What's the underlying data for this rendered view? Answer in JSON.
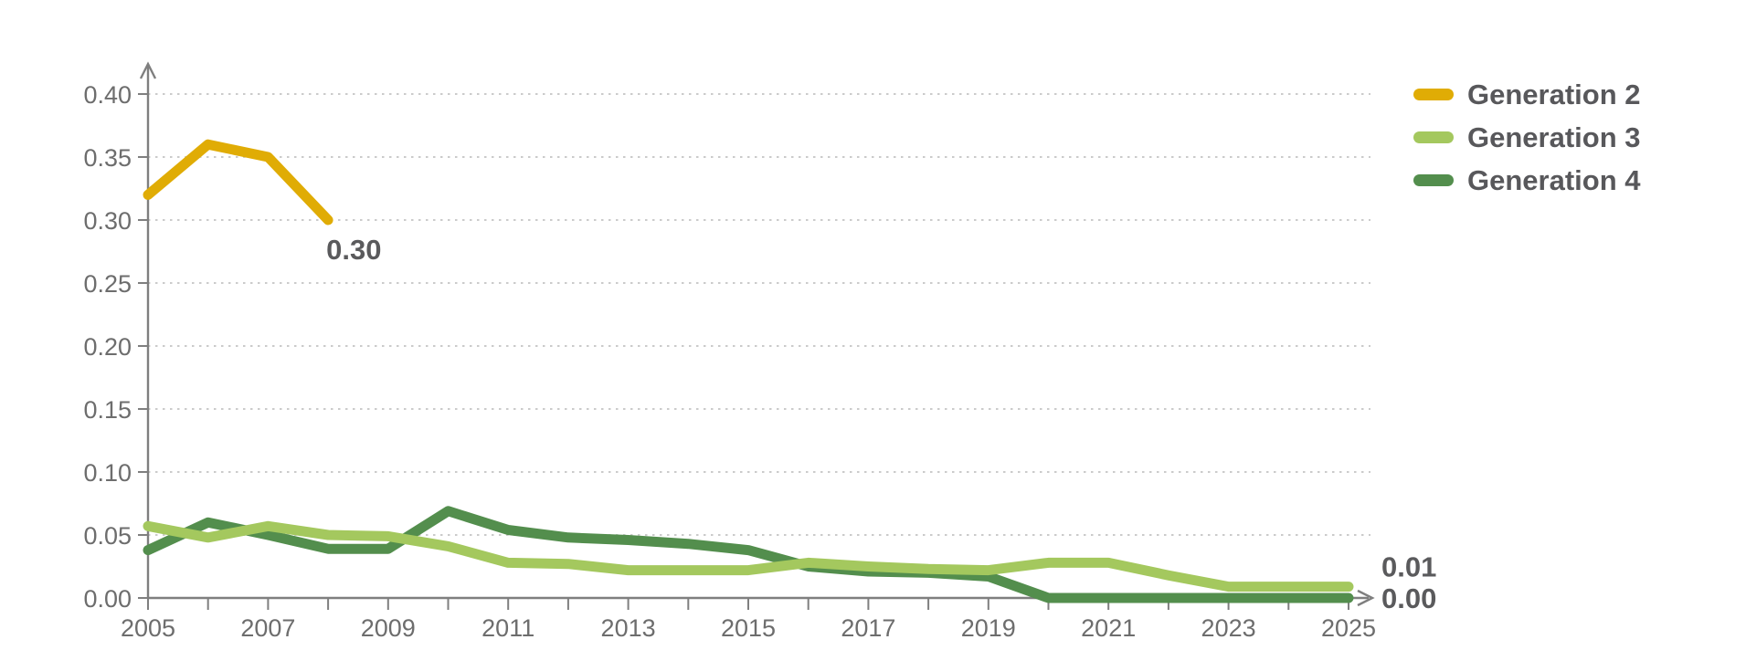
{
  "chart_data": {
    "type": "line",
    "title": "",
    "xlabel": "",
    "ylabel": "",
    "x": [
      2005,
      2006,
      2007,
      2008,
      2009,
      2010,
      2011,
      2012,
      2013,
      2014,
      2015,
      2016,
      2017,
      2018,
      2019,
      2020,
      2021,
      2022,
      2023,
      2024,
      2025
    ],
    "x_tick_labels": [
      "2005",
      "2007",
      "2009",
      "2011",
      "2013",
      "2015",
      "2017",
      "2019",
      "2021",
      "2023",
      "2025"
    ],
    "ylim": [
      0,
      0.4
    ],
    "y_ticks": [
      0.0,
      0.05,
      0.1,
      0.15,
      0.2,
      0.25,
      0.3,
      0.35,
      0.4
    ],
    "y_tick_labels": [
      "0.00",
      "0.05",
      "0.10",
      "0.15",
      "0.20",
      "0.25",
      "0.30",
      "0.35",
      "0.40"
    ],
    "grid": "horizontal-dotted",
    "legend_position": "top-right",
    "axes_have_arrowheads": true,
    "series": [
      {
        "name": "Generation 2",
        "color": "#e0ac05",
        "x_start": 2005,
        "values": [
          0.32,
          0.36,
          0.35,
          0.3
        ],
        "end_label": "0.30"
      },
      {
        "name": "Generation 3",
        "color": "#a4c85e",
        "x_start": 2005,
        "values": [
          0.057,
          0.048,
          0.057,
          0.05,
          0.049,
          0.041,
          0.028,
          0.027,
          0.022,
          0.022,
          0.022,
          0.028,
          0.025,
          0.023,
          0.022,
          0.028,
          0.028,
          0.018,
          0.009,
          0.009,
          0.009
        ],
        "end_label": "0.01"
      },
      {
        "name": "Generation 4",
        "color": "#538e4d",
        "x_start": 2005,
        "values": [
          0.038,
          0.06,
          0.05,
          0.039,
          0.039,
          0.069,
          0.054,
          0.048,
          0.046,
          0.043,
          0.038,
          0.025,
          0.021,
          0.02,
          0.017,
          0.0,
          0.0,
          0.0,
          0.0,
          0.0,
          0.0
        ],
        "end_label": "0.00"
      }
    ]
  },
  "colors": {
    "background": "#ffffff",
    "axis": "#7f7f7f",
    "gridline": "#cbcbcb",
    "tick_text": "#6d6d6d",
    "data_label_text": "#5a5a5c",
    "legend_text": "#58585b"
  }
}
